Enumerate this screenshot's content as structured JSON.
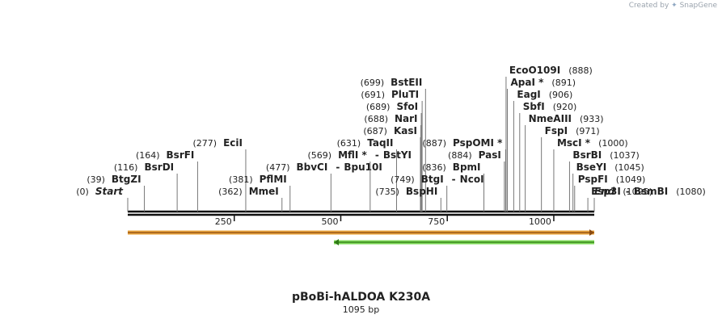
{
  "branding": {
    "prefix": "Created by",
    "logo": "SnapGene"
  },
  "plasmid": {
    "name": "pBoBi-hALDOA K230A",
    "length_label": "1095 bp",
    "length": 1095
  },
  "scale": {
    "ticks": [
      250,
      500,
      750,
      1000
    ]
  },
  "ends": [
    {
      "pos": 0,
      "pos_label": "(0)",
      "name": "Start",
      "row": 0,
      "side": "left",
      "line_x": 158
    },
    {
      "pos": 1095,
      "pos_label": "(1095)",
      "name": "End",
      "row": 0,
      "side": "right",
      "line_x": 735
    }
  ],
  "sites": [
    {
      "pos": 39,
      "pos_label": "(39)",
      "name": "BtgZI",
      "row": 1,
      "side": "left"
    },
    {
      "pos": 116,
      "pos_label": "(116)",
      "name": "BsrDI",
      "row": 2,
      "side": "left"
    },
    {
      "pos": 164,
      "pos_label": "(164)",
      "name": "BsrFI",
      "row": 3,
      "side": "left"
    },
    {
      "pos": 277,
      "pos_label": "(277)",
      "name": "EciI",
      "row": 4,
      "side": "left"
    },
    {
      "pos": 362,
      "pos_label": "(362)",
      "name": "MmeI",
      "row": 0,
      "side": "left"
    },
    {
      "pos": 381,
      "pos_label": "(381)",
      "name": "PflMI",
      "row": 1,
      "side": "left"
    },
    {
      "pos": 477,
      "pos_label": "(477)",
      "name": "BbvCI",
      "partner": "Bpu10I",
      "row": 2,
      "side": "left"
    },
    {
      "pos": 569,
      "pos_label": "(569)",
      "name": "MflI",
      "star": "*",
      "partner": "BstYI",
      "row": 3,
      "side": "left"
    },
    {
      "pos": 631,
      "pos_label": "(631)",
      "name": "TaqII",
      "row": 4,
      "side": "left"
    },
    {
      "pos": 687,
      "pos_label": "(687)",
      "name": "KasI",
      "row": 5,
      "side": "left"
    },
    {
      "pos": 688,
      "pos_label": "(688)",
      "name": "NarI",
      "row": 6,
      "side": "left"
    },
    {
      "pos": 689,
      "pos_label": "(689)",
      "name": "SfoI",
      "row": 7,
      "side": "left"
    },
    {
      "pos": 691,
      "pos_label": "(691)",
      "name": "PluTI",
      "row": 8,
      "side": "left"
    },
    {
      "pos": 699,
      "pos_label": "(699)",
      "name": "BstEII",
      "row": 9,
      "side": "left"
    },
    {
      "pos": 735,
      "pos_label": "(735)",
      "name": "BspHI",
      "row": 0,
      "side": "left"
    },
    {
      "pos": 749,
      "pos_label": "(749)",
      "name": "BtgI",
      "partner": "NcoI",
      "row": 1,
      "side": "left"
    },
    {
      "pos": 836,
      "pos_label": "(836)",
      "name": "BpmI",
      "row": 2,
      "side": "left"
    },
    {
      "pos": 884,
      "pos_label": "(884)",
      "name": "PasI",
      "row": 3,
      "side": "left"
    },
    {
      "pos": 887,
      "pos_label": "(887)",
      "name": "PspOMI",
      "star": "*",
      "row": 4,
      "side": "left"
    },
    {
      "pos": 888,
      "pos_label": "(888)",
      "name": "EcoO109I",
      "row": 10,
      "side": "right"
    },
    {
      "pos": 891,
      "pos_label": "(891)",
      "name": "ApaI",
      "star": "*",
      "row": 9,
      "side": "right"
    },
    {
      "pos": 906,
      "pos_label": "(906)",
      "name": "EagI",
      "row": 8,
      "side": "right"
    },
    {
      "pos": 920,
      "pos_label": "(920)",
      "name": "SbfI",
      "row": 7,
      "side": "right"
    },
    {
      "pos": 933,
      "pos_label": "(933)",
      "name": "NmeAIII",
      "row": 6,
      "side": "right"
    },
    {
      "pos": 971,
      "pos_label": "(971)",
      "name": "FspI",
      "row": 5,
      "side": "right"
    },
    {
      "pos": 1000,
      "pos_label": "(1000)",
      "name": "MscI",
      "star": "*",
      "row": 4,
      "side": "right"
    },
    {
      "pos": 1037,
      "pos_label": "(1037)",
      "name": "BsrBI",
      "row": 3,
      "side": "right"
    },
    {
      "pos": 1045,
      "pos_label": "(1045)",
      "name": "BseYI",
      "row": 2,
      "side": "right"
    },
    {
      "pos": 1049,
      "pos_label": "(1049)",
      "name": "PspFI",
      "row": 1,
      "side": "right"
    },
    {
      "pos": 1080,
      "pos_label": "(1080)",
      "name": "Esp3I",
      "partner": "BsmBI",
      "row": 0,
      "side": "right"
    }
  ],
  "features": [
    {
      "start": 0,
      "end": 1095,
      "direction": "forward",
      "color": "#e8a33c",
      "stroke": "#8b4a10"
    },
    {
      "start": 484,
      "end": 1095,
      "direction": "reverse",
      "color": "#7ed957",
      "stroke": "#2f7a16"
    }
  ]
}
